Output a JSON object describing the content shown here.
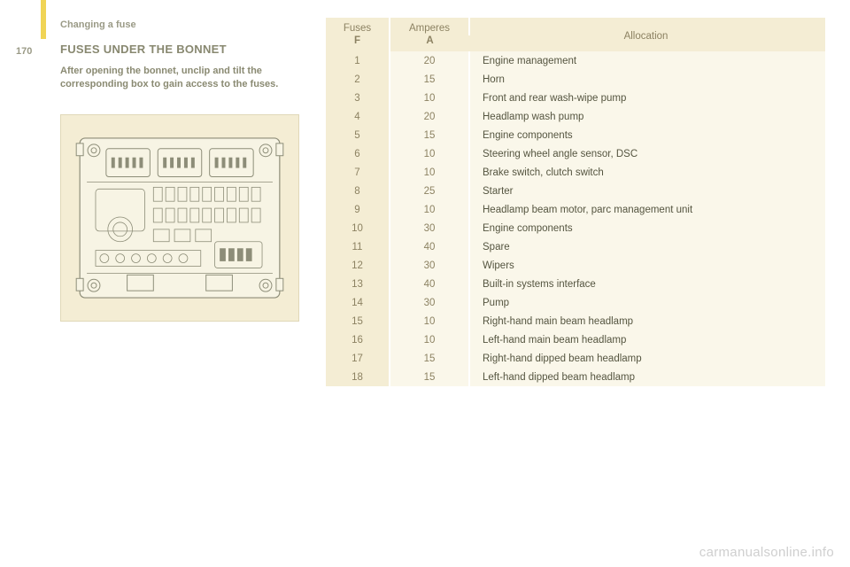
{
  "page": {
    "breadcrumb": "Changing a fuse",
    "pageNumber": "170",
    "sectionTitle": "FUSES UNDER THE BONNET",
    "introText": "After opening the bonnet, unclip and tilt the corresponding box to gain access to the fuses.",
    "watermark": "carmanualsonline.info"
  },
  "diagram": {
    "bg": "#f4edd4",
    "outline": "#8d8d78",
    "fill": "#f7f4e4"
  },
  "table": {
    "headers": {
      "fuses": "Fuses",
      "fusesSub": "F",
      "amperes": "Amperes",
      "amperesSub": "A",
      "allocation": "Allocation"
    },
    "colors": {
      "headerBg": "#f4edd4",
      "fuseBg": "#f4edd4",
      "ampBg": "#faf7ea",
      "allocBg": "#faf7ea",
      "headerText": "#8c8262",
      "bodyText": "#555540"
    },
    "rows": [
      {
        "f": "1",
        "a": "20",
        "alloc": "Engine management"
      },
      {
        "f": "2",
        "a": "15",
        "alloc": "Horn"
      },
      {
        "f": "3",
        "a": "10",
        "alloc": "Front and rear wash-wipe pump"
      },
      {
        "f": "4",
        "a": "20",
        "alloc": "Headlamp wash pump"
      },
      {
        "f": "5",
        "a": "15",
        "alloc": "Engine components"
      },
      {
        "f": "6",
        "a": "10",
        "alloc": "Steering wheel angle sensor, DSC"
      },
      {
        "f": "7",
        "a": "10",
        "alloc": "Brake switch, clutch switch"
      },
      {
        "f": "8",
        "a": "25",
        "alloc": "Starter"
      },
      {
        "f": "9",
        "a": "10",
        "alloc": "Headlamp beam motor, parc management unit"
      },
      {
        "f": "10",
        "a": "30",
        "alloc": "Engine components"
      },
      {
        "f": "11",
        "a": "40",
        "alloc": "Spare"
      },
      {
        "f": "12",
        "a": "30",
        "alloc": "Wipers"
      },
      {
        "f": "13",
        "a": "40",
        "alloc": "Built-in systems interface"
      },
      {
        "f": "14",
        "a": "30",
        "alloc": "Pump"
      },
      {
        "f": "15",
        "a": "10",
        "alloc": "Right-hand main beam headlamp"
      },
      {
        "f": "16",
        "a": "10",
        "alloc": "Left-hand main beam headlamp"
      },
      {
        "f": "17",
        "a": "15",
        "alloc": "Right-hand dipped beam headlamp"
      },
      {
        "f": "18",
        "a": "15",
        "alloc": "Left-hand dipped beam headlamp"
      }
    ]
  }
}
